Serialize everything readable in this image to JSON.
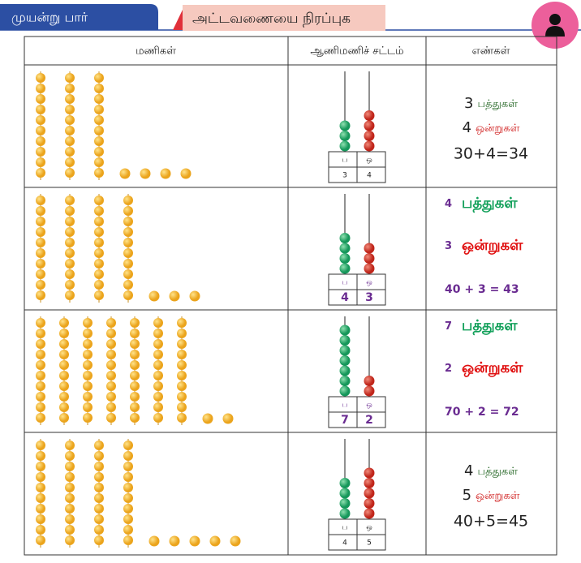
{
  "header": {
    "tab": "முயன்று பார்",
    "title": "அட்டவணையை நிரப்புக"
  },
  "table": {
    "columns": [
      "மணிகள்",
      "ஆணிமணிச் சட்டம்",
      "எண்கள்"
    ],
    "abacus_labels": [
      "ப",
      "ஒ"
    ],
    "rows": [
      {
        "tens": 3,
        "ones": 4,
        "tens_word": "பத்துகள்",
        "ones_word": "ஒன்றுகள்",
        "equation": "30+4=34"
      },
      {
        "tens": 4,
        "ones": 3,
        "tens_word": "பத்துகள்",
        "ones_word": "ஒன்றுகள்",
        "equation": "40 + 3 = 43"
      },
      {
        "tens": 7,
        "ones": 2,
        "tens_word": "பத்துகள்",
        "ones_word": "ஒன்றுகள்",
        "equation": "70 + 2 = 72"
      },
      {
        "tens": 4,
        "ones": 5,
        "tens_word": "பத்துகள்",
        "ones_word": "ஒன்றுகள்",
        "equation": "40+5=45"
      }
    ]
  }
}
